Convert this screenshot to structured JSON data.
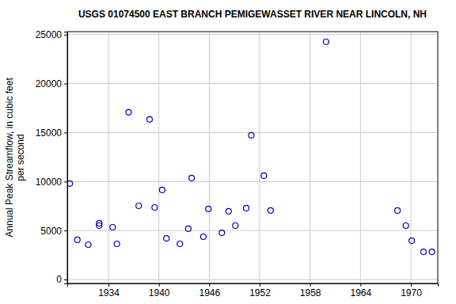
{
  "chart_data": {
    "type": "scatter",
    "title": "USGS 01074500 EAST BRANCH PEMIGEWASSET RIVER NEAR LINCOLN, NH",
    "y_label": [
      "Annual Peak Streamflow, in cubic feet",
      "per second"
    ],
    "x": [
      1929.4,
      1930.3,
      1931.6,
      1932.9,
      1932.9,
      1934.5,
      1935.0,
      1936.4,
      1937.6,
      1938.9,
      1939.5,
      1940.4,
      1940.9,
      1942.5,
      1943.5,
      1943.9,
      1945.3,
      1945.9,
      1947.5,
      1948.3,
      1949.1,
      1950.4,
      1951.0,
      1952.5,
      1953.3,
      1959.9,
      1968.4,
      1969.4,
      1970.1,
      1971.5,
      1972.5
    ],
    "values": [
      9800,
      4050,
      3560,
      5740,
      5500,
      5340,
      3640,
      17070,
      7520,
      16340,
      7360,
      9140,
      4200,
      3640,
      5180,
      10360,
      4370,
      7200,
      4770,
      6960,
      5500,
      7280,
      14720,
      10600,
      7040,
      24270,
      7040,
      5500,
      3960,
      2830,
      2830
    ],
    "color": "#0000cc",
    "marker": "open-circle",
    "xlim": [
      1929.1,
      1973.2
    ],
    "xticks": [
      1934,
      1940,
      1946,
      1952,
      1958,
      1964,
      1970
    ],
    "ylim": [
      -400,
      25300
    ],
    "yticks": [
      0,
      5000,
      10000,
      15000,
      20000,
      25000
    ],
    "grid": true
  }
}
